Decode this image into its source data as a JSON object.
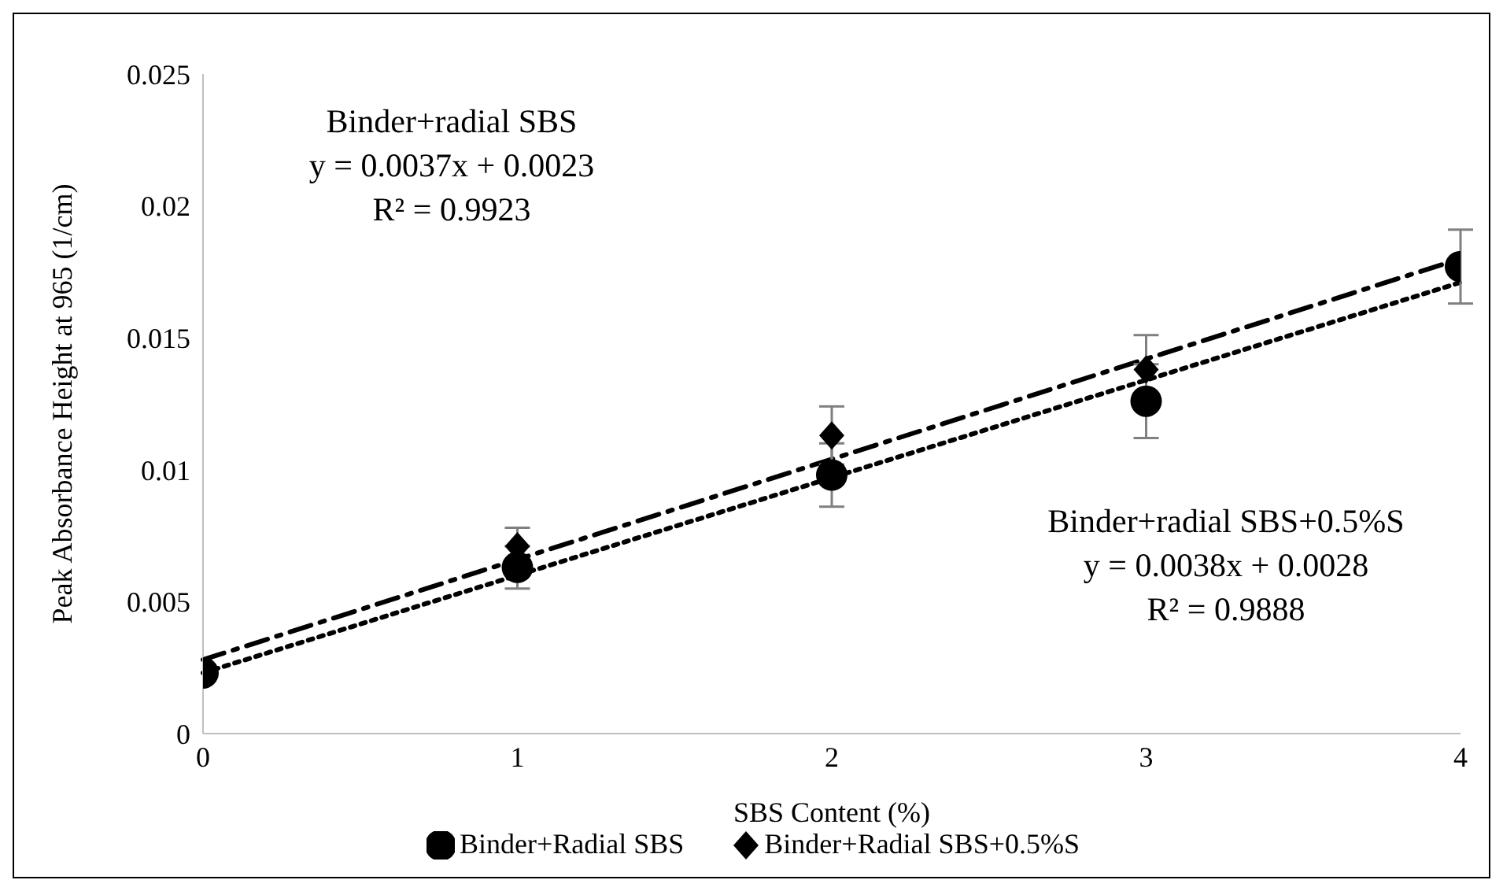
{
  "chart_data": {
    "type": "scatter",
    "xlabel": "SBS Content (%)",
    "ylabel": "Peak Absorbance Height at 965 (1/cm)",
    "x": [
      0,
      1,
      2,
      3,
      4
    ],
    "xlim": [
      0,
      4
    ],
    "xticks": [
      0,
      1,
      2,
      3,
      4
    ],
    "ylim": [
      0,
      0.025
    ],
    "yticks": [
      0,
      0.005,
      0.01,
      0.015,
      0.02,
      0.025
    ],
    "grid": false,
    "legend": "bottom",
    "series": [
      {
        "name": "Binder+Radial SBS",
        "color": "#000000",
        "marker": "circle",
        "values": [
          0.0023,
          0.0063,
          0.0098,
          0.0126,
          0.0177
        ],
        "errors": [
          null,
          0.0008,
          0.0012,
          0.0014,
          0.0014
        ]
      },
      {
        "name": "Binder+Radial SBS+0.5%S",
        "color": "#000000",
        "marker": "diamond",
        "values": [
          null,
          0.0071,
          0.0113,
          0.0138,
          null
        ],
        "errors": [
          null,
          0.0007,
          0.0011,
          0.0013,
          null
        ]
      },
      {
        "type": "line",
        "values": [
          0.0023,
          0.006,
          0.0097,
          0.0134,
          0.0171
        ],
        "color": "#000000",
        "line_style": "dotted"
      },
      {
        "type": "line",
        "values": [
          0.0028,
          0.0066,
          0.0104,
          0.0142,
          0.018
        ],
        "color": "#000000",
        "line_style": "dashed"
      }
    ],
    "annotations": [
      "Binder+radial SBS",
      "y = 0.0037x + 0.0023",
      "R² = 0.9923",
      "Binder+radial SBS+0.5%S",
      "y = 0.0038x + 0.0028",
      "R² = 0.9888"
    ]
  }
}
